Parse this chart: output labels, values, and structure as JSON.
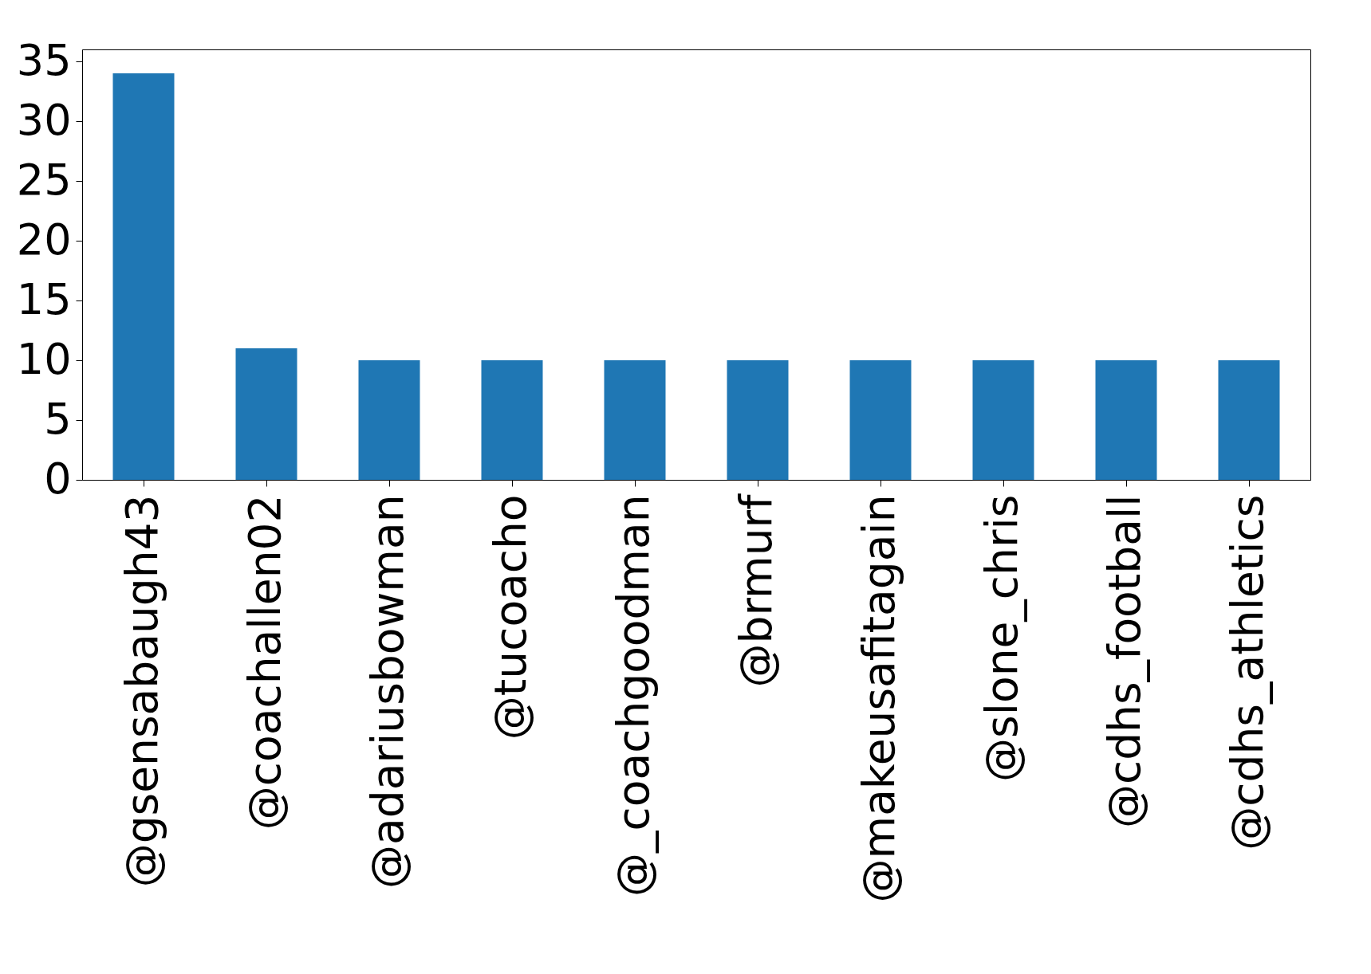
{
  "chart_data": {
    "type": "bar",
    "categories": [
      "@gsensabaugh43",
      "@coachallen02",
      "@adariusbowman",
      "@tucoacho",
      "@_coachgoodman",
      "@brmurf",
      "@makeusafitagain",
      "@slone_chris",
      "@cdhs_football",
      "@cdhs_athletics"
    ],
    "values": [
      34,
      11,
      10,
      10,
      10,
      10,
      10,
      10,
      10,
      10
    ],
    "color": "#1f77b4",
    "ylim": [
      0,
      36
    ],
    "yticks": [
      0,
      5,
      10,
      15,
      20,
      25,
      30,
      35
    ],
    "grid": false
  }
}
